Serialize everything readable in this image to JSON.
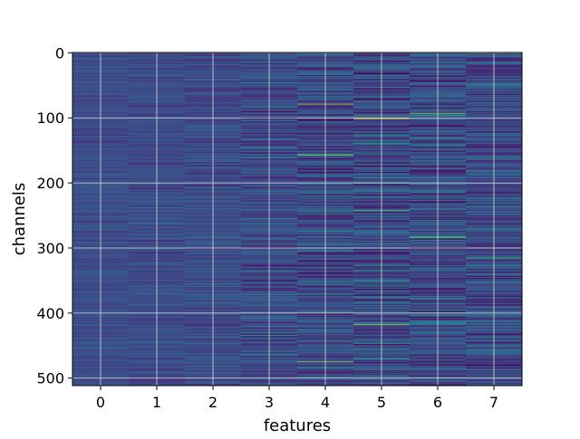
{
  "chart_data": {
    "type": "heatmap",
    "title": "",
    "xlabel": "features",
    "ylabel": "channels",
    "x_categories": [
      "0",
      "1",
      "2",
      "3",
      "4",
      "5",
      "6",
      "7"
    ],
    "y_ticks": [
      0,
      100,
      200,
      300,
      400,
      500
    ],
    "ylim": [
      511.5,
      -0.5
    ],
    "xlim": [
      -0.5,
      7.5
    ],
    "n_rows": 512,
    "n_cols": 8,
    "colormap": "viridis",
    "grid": true,
    "column_spread": [
      0.06,
      0.08,
      0.1,
      0.16,
      0.2,
      0.22,
      0.2,
      0.19
    ],
    "highlights": [
      {
        "col": 4,
        "row": 79,
        "value": 0.88
      },
      {
        "col": 4,
        "row": 157,
        "value": 0.85
      },
      {
        "col": 4,
        "row": 475,
        "value": 0.86
      },
      {
        "col": 5,
        "row": 100,
        "value": 0.97
      },
      {
        "col": 5,
        "row": 101,
        "value": 0.95
      },
      {
        "col": 5,
        "row": 242,
        "value": 0.75
      },
      {
        "col": 5,
        "row": 418,
        "value": 0.85
      },
      {
        "col": 6,
        "row": 93,
        "value": 0.8
      },
      {
        "col": 6,
        "row": 283,
        "value": 0.7
      },
      {
        "col": 6,
        "row": 284,
        "value": 0.72
      },
      {
        "col": 7,
        "row": 0,
        "value": 0.9
      },
      {
        "col": 7,
        "row": 315,
        "value": 0.66
      },
      {
        "col": 3,
        "row": 434,
        "value": 0.62
      }
    ]
  }
}
